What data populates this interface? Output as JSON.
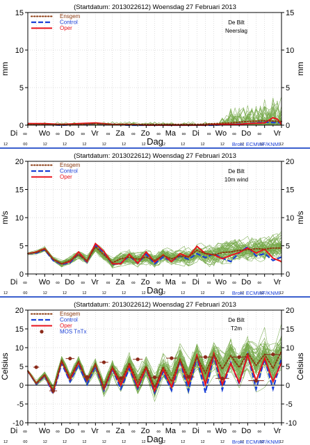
{
  "colors": {
    "ensemble": "#76a84a",
    "ensgem": "#8b3a10",
    "control": "#1a3fd6",
    "oper": "#e8121b",
    "mos": "#8b2a1a",
    "source": "#1a3fd6",
    "separator": "#3a5fcd"
  },
  "chart_data": [
    {
      "type": "line",
      "title": "(Startdatum: 2013022612)   Woensdag  27 Februari  2013",
      "station": "De Bilt",
      "variable": "Neerslag",
      "ylabel": "mm",
      "xlabel": "Dag",
      "source": "Bron: ECMWF/KNMI",
      "ylim": [
        0,
        15
      ],
      "yticks": [
        0,
        5,
        10,
        15
      ],
      "x_range_hours": [
        0,
        360
      ],
      "grid": true,
      "legend_position": "top-left",
      "day_labels": [
        "Di",
        "Wo",
        "Do",
        "Vr",
        "Za",
        "Zo",
        "Ma",
        "Di",
        "Wo",
        "Do",
        "Vr"
      ],
      "sub_labels": [
        "12",
        "00",
        "12",
        "12",
        "12",
        "12",
        "12",
        "12",
        "12",
        "12",
        "12",
        "12",
        "12",
        "12",
        "12"
      ],
      "legend": [
        {
          "label": "Ensgem",
          "style": "ensgem"
        },
        {
          "label": "Control",
          "style": "control"
        },
        {
          "label": "Oper",
          "style": "oper"
        }
      ],
      "ensemble": {
        "members": 50,
        "seed": 11,
        "kind": "precip",
        "step_hours": 6
      },
      "series": [
        {
          "key": "ensgem",
          "x": [
            0,
            24,
            48,
            72,
            96,
            120,
            144,
            168,
            192,
            216,
            240,
            264,
            288,
            312,
            336,
            360
          ],
          "y": [
            0.1,
            0.1,
            0.1,
            0.1,
            0.2,
            0.1,
            0.1,
            0.1,
            0.1,
            0.1,
            0.1,
            0.2,
            0.3,
            0.5,
            0.6,
            0.5
          ]
        },
        {
          "key": "control",
          "x": [
            0,
            24,
            48,
            72,
            96,
            120,
            144,
            168,
            192,
            216,
            240,
            264,
            288,
            312,
            336,
            360
          ],
          "y": [
            0.2,
            0.1,
            0,
            0.1,
            0.2,
            0.1,
            0,
            0,
            0,
            0,
            0,
            0,
            0.1,
            0.2,
            0.4,
            0.3
          ]
        },
        {
          "key": "oper",
          "x": [
            0,
            24,
            48,
            72,
            96,
            120,
            144,
            168,
            192,
            216,
            240,
            252,
            264,
            288,
            300,
            312,
            336,
            348,
            354,
            360
          ],
          "y": [
            0.2,
            0.2,
            0.1,
            0.2,
            0.3,
            0.1,
            0.1,
            0,
            0,
            0,
            0,
            0,
            0.1,
            0.1,
            0.1,
            0.2,
            0.3,
            1.0,
            0.8,
            0.1
          ]
        }
      ]
    },
    {
      "type": "line",
      "title": "(Startdatum: 2013022612)   Woensdag  27 Februari  2013",
      "station": "De Bilt",
      "variable": "10m wind",
      "ylabel": "m/s",
      "xlabel": "Dag",
      "source": "Bron: ECMWF/KNMI",
      "ylim": [
        0,
        20
      ],
      "yticks": [
        0,
        5,
        10,
        15,
        20
      ],
      "x_range_hours": [
        0,
        360
      ],
      "grid": true,
      "legend_position": "top-left",
      "day_labels": [
        "Di",
        "Wo",
        "Do",
        "Vr",
        "Za",
        "Zo",
        "Ma",
        "Di",
        "Wo",
        "Do",
        "Vr"
      ],
      "sub_labels": [
        "12",
        "00",
        "12",
        "12",
        "12",
        "12",
        "12",
        "12",
        "12",
        "12",
        "12",
        "12",
        "12",
        "12",
        "12"
      ],
      "legend": [
        {
          "label": "Ensgem",
          "style": "ensgem"
        },
        {
          "label": "Control",
          "style": "control"
        },
        {
          "label": "Oper",
          "style": "oper"
        }
      ],
      "ensemble": {
        "members": 50,
        "seed": 23,
        "kind": "spread",
        "step_hours": 6,
        "spread_start": 0.3,
        "spread_end": 2.6
      },
      "series": [
        {
          "key": "ensgem",
          "x": [
            0,
            12,
            24,
            36,
            48,
            60,
            72,
            84,
            96,
            108,
            120,
            132,
            144,
            156,
            168,
            180,
            192,
            204,
            216,
            228,
            240,
            252,
            264,
            276,
            288,
            300,
            312,
            324,
            336,
            348,
            360
          ],
          "y": [
            3.6,
            3.8,
            4.4,
            2.6,
            1.8,
            2.4,
            3.4,
            2.4,
            4.8,
            3.4,
            2.0,
            2.7,
            3.0,
            2.6,
            3.0,
            2.4,
            3.3,
            2.7,
            3.2,
            3.0,
            4.2,
            3.6,
            3.4,
            3.8,
            3.9,
            4.2,
            4.3,
            4.5,
            4.4,
            4.6,
            4.6
          ]
        },
        {
          "key": "control",
          "x": [
            0,
            12,
            24,
            36,
            48,
            60,
            72,
            84,
            96,
            108,
            120,
            132,
            144,
            156,
            168,
            180,
            192,
            204,
            216,
            228,
            240,
            252,
            264,
            276,
            288,
            300,
            312,
            324,
            336,
            348,
            360
          ],
          "y": [
            3.6,
            3.7,
            4.3,
            2.4,
            1.7,
            2.0,
            3.6,
            2.1,
            5.1,
            3.8,
            1.7,
            1.9,
            3.2,
            1.9,
            3.5,
            1.8,
            3.0,
            2.3,
            3.2,
            2.6,
            3.6,
            2.9,
            3.6,
            2.8,
            2.2,
            3.8,
            4.8,
            3.2,
            3.6,
            2.4,
            3.0
          ]
        },
        {
          "key": "oper",
          "x": [
            0,
            12,
            24,
            36,
            48,
            60,
            72,
            84,
            96,
            108,
            120,
            132,
            144,
            156,
            168,
            180,
            192,
            204,
            216,
            228,
            240,
            252,
            264,
            276,
            288,
            300,
            312,
            324,
            336,
            348,
            360
          ],
          "y": [
            3.6,
            3.9,
            4.5,
            2.6,
            1.8,
            2.2,
            3.9,
            2.2,
            5.4,
            4.0,
            1.8,
            1.8,
            3.5,
            1.9,
            3.9,
            2.1,
            3.4,
            2.2,
            3.6,
            3.0,
            4.9,
            3.6,
            3.4,
            2.7,
            3.3,
            3.8,
            4.6,
            3.7,
            4.4,
            2.8,
            2.2
          ]
        }
      ]
    },
    {
      "type": "line",
      "title": "(Startdatum: 2013022612)   Woensdag  27 Februari  2013",
      "station": "De Bilt",
      "variable": "T2m",
      "ylabel": "Celsius",
      "xlabel": "Dag",
      "source": "Bron: ECMWF/KNMI",
      "ylim": [
        -10,
        20
      ],
      "yticks": [
        -10,
        -5,
        0,
        5,
        10,
        15,
        20
      ],
      "zero_line": true,
      "x_range_hours": [
        0,
        360
      ],
      "grid": true,
      "legend_position": "top-left",
      "day_labels": [
        "Di",
        "Wo",
        "Do",
        "Vr",
        "Za",
        "Zo",
        "Ma",
        "Di",
        "Wo",
        "Do",
        "Vr"
      ],
      "sub_labels": [
        "12",
        "00",
        "12",
        "12",
        "12",
        "12",
        "12",
        "12",
        "12",
        "12",
        "12",
        "12",
        "12",
        "12",
        "12"
      ],
      "legend": [
        {
          "label": "Ensgem",
          "style": "ensgem"
        },
        {
          "label": "Control",
          "style": "control"
        },
        {
          "label": "Oper",
          "style": "oper"
        },
        {
          "label": "MOS TnTx",
          "style": "mos"
        }
      ],
      "ensemble": {
        "members": 50,
        "seed": 37,
        "kind": "spread",
        "step_hours": 6,
        "spread_start": 0.5,
        "spread_end": 6.5
      },
      "series": [
        {
          "key": "ensgem",
          "x": [
            0,
            12,
            24,
            36,
            48,
            60,
            72,
            84,
            96,
            108,
            120,
            132,
            144,
            156,
            168,
            180,
            192,
            204,
            216,
            228,
            240,
            252,
            264,
            276,
            288,
            300,
            312,
            324,
            336,
            348,
            360
          ],
          "y": [
            3.8,
            0.5,
            2.8,
            -1.4,
            6.6,
            2.0,
            6.4,
            1.2,
            5.6,
            -0.6,
            4.9,
            1.0,
            5.9,
            0.8,
            5.0,
            -0.6,
            4.9,
            1.0,
            6.8,
            2.0,
            7.6,
            3.2,
            8.2,
            4.3,
            7.9,
            4.7,
            8.6,
            5.3,
            8.2,
            4.5,
            9.1
          ]
        },
        {
          "key": "control",
          "x": [
            0,
            12,
            24,
            36,
            48,
            60,
            72,
            84,
            96,
            108,
            120,
            132,
            144,
            156,
            168,
            180,
            192,
            204,
            216,
            228,
            240,
            252,
            264,
            276,
            288,
            300,
            312,
            324,
            336,
            348,
            360
          ],
          "y": [
            3.8,
            0.3,
            2.5,
            -2.3,
            5.8,
            0.9,
            5.4,
            0.2,
            5.0,
            -1.4,
            4.4,
            -1.0,
            4.4,
            -0.9,
            4.5,
            -2.0,
            3.6,
            -1.4,
            6.5,
            -1.5,
            7.5,
            -2.0,
            8.0,
            -1.2,
            6.0,
            0.3,
            8.3,
            -1.0,
            7.0,
            -1.0,
            7.2
          ]
        },
        {
          "key": "oper",
          "x": [
            0,
            12,
            24,
            36,
            48,
            60,
            72,
            84,
            96,
            108,
            120,
            132,
            144,
            156,
            168,
            180,
            192,
            204,
            216,
            228,
            240,
            252,
            264,
            276,
            288,
            300,
            312,
            324,
            336,
            348,
            360
          ],
          "y": [
            3.8,
            0.5,
            2.7,
            -1.8,
            6.4,
            1.6,
            6.1,
            1.2,
            5.5,
            -1.0,
            4.6,
            0.0,
            5.3,
            -0.5,
            4.7,
            -1.5,
            4.3,
            -0.5,
            6.8,
            0.2,
            8.0,
            0.2,
            8.4,
            0.2,
            5.8,
            0.7,
            8.0,
            1.2,
            7.2,
            1.0,
            6.0
          ]
        }
      ],
      "mos": {
        "x": [
          12,
          36,
          60,
          84,
          108,
          132,
          156,
          180,
          204,
          228,
          252,
          276,
          300,
          324,
          348
        ],
        "y": [
          4.8,
          -1.5,
          7.1,
          2.2,
          6.1,
          1.9,
          6.9,
          2.1,
          7.2,
          2.2,
          7.5,
          1.8,
          7.5,
          1.2,
          8.2
        ],
        "err": [
          0.6,
          0.8,
          0.9,
          0.9,
          0.9,
          1.0,
          1.0,
          1.1,
          1.1,
          1.2,
          1.3,
          1.4,
          1.5,
          1.6,
          1.8
        ]
      }
    }
  ]
}
